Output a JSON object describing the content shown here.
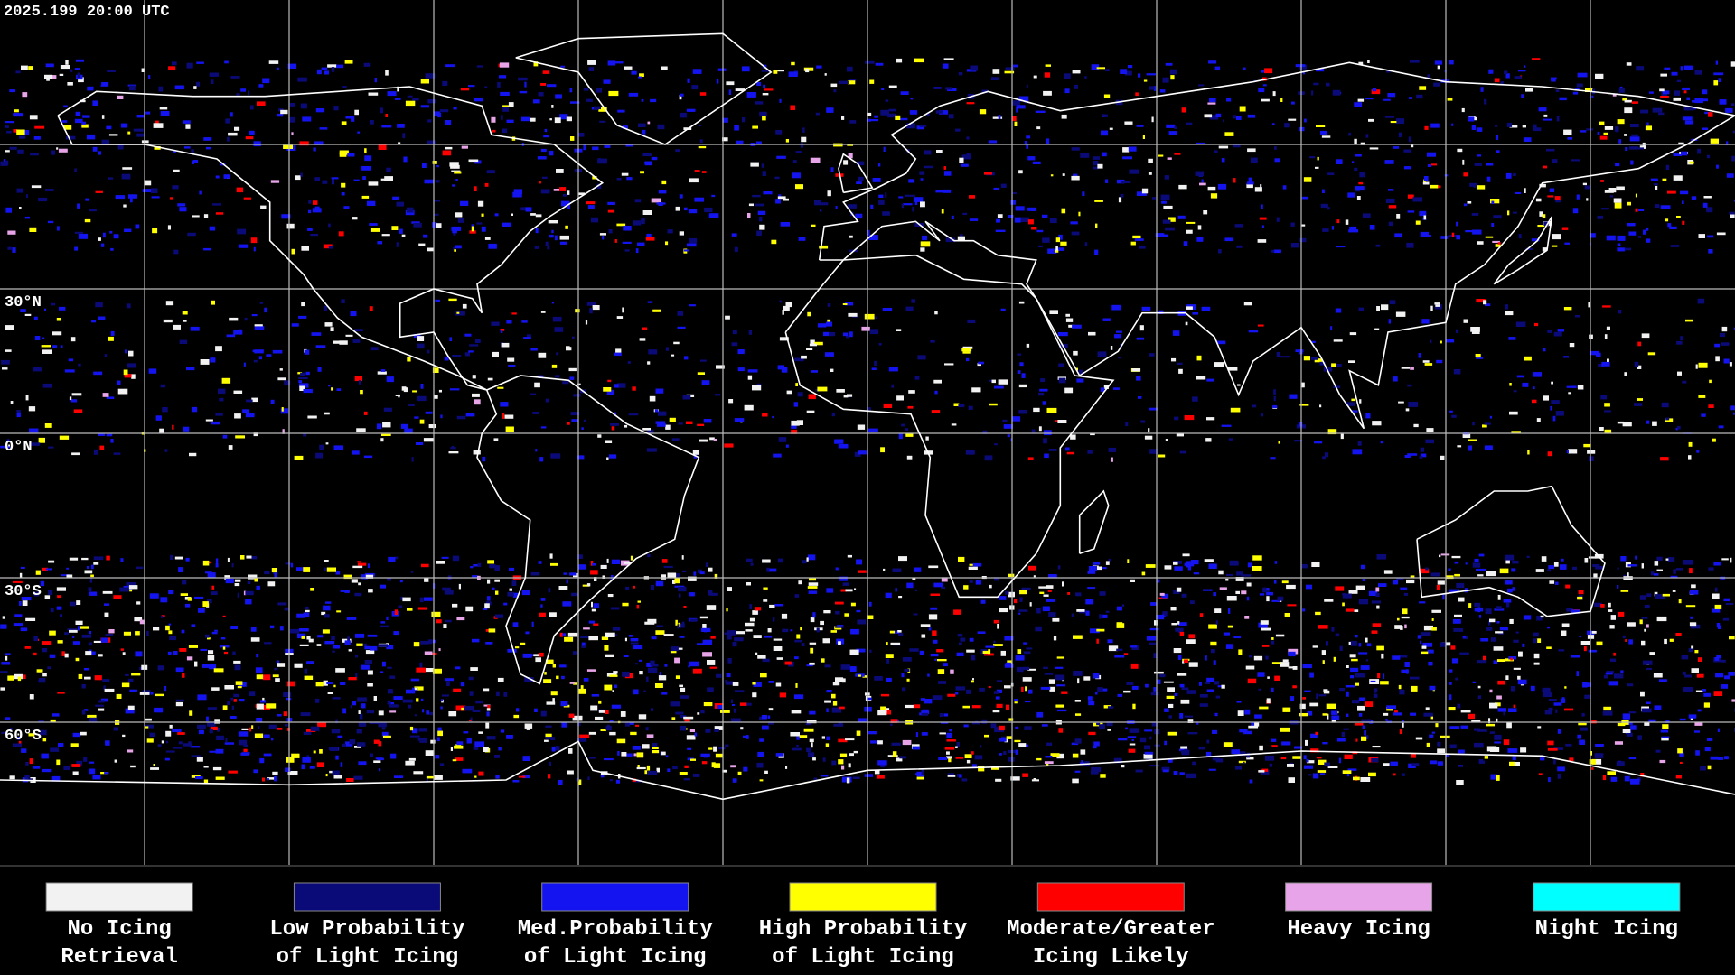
{
  "timestamp": "2025.199 20:00 UTC",
  "latitude_labels": [
    "30°N",
    "0°N",
    "30°S",
    "60°S"
  ],
  "legend": [
    {
      "label": [
        "No Icing",
        "Retrieval"
      ],
      "color": "#f2f2f2"
    },
    {
      "label": [
        "Low Probability",
        "of Light Icing"
      ],
      "color": "#0a0a78"
    },
    {
      "label": [
        "Med.Probability",
        "of Light Icing"
      ],
      "color": "#1414f0"
    },
    {
      "label": [
        "High Probability",
        "of Light Icing"
      ],
      "color": "#ffff00"
    },
    {
      "label": [
        "Moderate/Greater",
        "Icing Likely"
      ],
      "color": "#ff0000"
    },
    {
      "label": [
        "Heavy Icing"
      ],
      "color": "#e8a4e8"
    },
    {
      "label": [
        "Night Icing"
      ],
      "color": "#00ffff"
    }
  ]
}
